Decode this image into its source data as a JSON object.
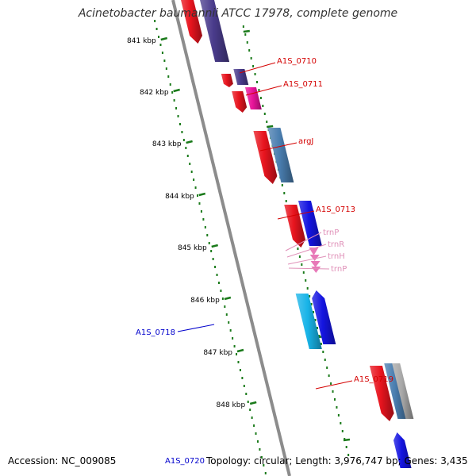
{
  "title": "Acinetobacter baumannii ATCC 17978, complete genome",
  "footer": {
    "accession": "Accession: NC_009085",
    "info": "Topology: circular; Length: 3,976,747 bp; Genes: 3,435"
  },
  "colors": {
    "backbone": "#8c8c8c",
    "ruler": "#1a7a1a",
    "label_red": "#d40000",
    "label_blue": "#0000cc",
    "label_pink": "#e090b8",
    "tick_label": "#000000"
  },
  "ruler_ticks": [
    "841 kbp",
    "842 kbp",
    "843 kbp",
    "844 kbp",
    "845 kbp",
    "846 kbp",
    "847 kbp",
    "848 kbp"
  ],
  "genes": [
    {
      "id": "gene-top-red",
      "color": "#e8141e",
      "label": "",
      "label_color": ""
    },
    {
      "id": "gene-top-purple",
      "color": "#4a3c8c",
      "label": "",
      "label_color": ""
    },
    {
      "id": "gene-0710-red",
      "color": "#e8141e",
      "label": "",
      "label_color": ""
    },
    {
      "id": "gene-0710-purple",
      "color": "#4a3c8c",
      "label": "A1S_0710",
      "label_color": "#d40000"
    },
    {
      "id": "gene-0711-red",
      "color": "#e8141e",
      "label": "",
      "label_color": ""
    },
    {
      "id": "gene-0711-magenta",
      "color": "#e8149a",
      "label": "A1S_0711",
      "label_color": "#d40000"
    },
    {
      "id": "gene-argJ-red",
      "color": "#e8141e",
      "label": "",
      "label_color": ""
    },
    {
      "id": "gene-argJ-steel",
      "color": "#4a7eb0",
      "label": "argJ",
      "label_color": "#d40000"
    },
    {
      "id": "gene-0713-red",
      "color": "#e8141e",
      "label": "",
      "label_color": ""
    },
    {
      "id": "gene-0713-blue",
      "color": "#1414e0",
      "label": "A1S_0713",
      "label_color": "#d40000"
    },
    {
      "id": "gene-0718-cyan",
      "color": "#18b4e8",
      "label": "A1S_0718",
      "label_color": "#0000cc"
    },
    {
      "id": "gene-0718-blue",
      "color": "#1414e0",
      "label": "",
      "label_color": ""
    },
    {
      "id": "gene-0719-red",
      "color": "#e8141e",
      "label": "",
      "label_color": ""
    },
    {
      "id": "gene-0719-steel",
      "color": "#4a7eb0",
      "label": "A1S_0719",
      "label_color": "#d40000"
    },
    {
      "id": "gene-0719-grey",
      "color": "#a8a8a8",
      "label": "",
      "label_color": ""
    },
    {
      "id": "gene-0720-blue",
      "color": "#1414e0",
      "label": "A1S_0720",
      "label_color": "#0000cc"
    }
  ],
  "trna_labels": [
    "trnP",
    "trnR",
    "trnH",
    "trnP"
  ]
}
